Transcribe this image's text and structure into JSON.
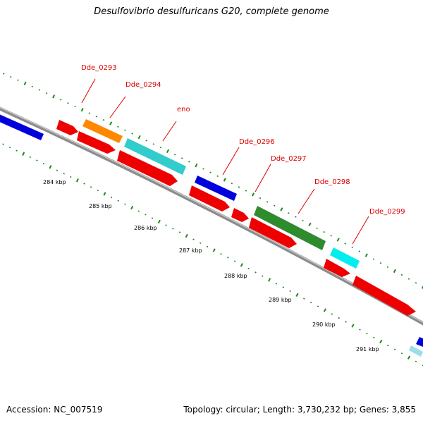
{
  "title": "Desulfovibrio desulfuricans G20, complete genome",
  "footer": {
    "accession": "Accession: NC_007519",
    "summary": "Topology: circular; Length: 3,730,232 bp; Genes: 3,855"
  },
  "colors": {
    "backbone": "#8c8c8c",
    "tick": "#1a8a1a",
    "label": "#dd0000",
    "red_gene": "#ee0000",
    "blue_gene": "#0000dd",
    "orange_gene": "#ff8800",
    "cyan_gene": "#33cccc",
    "bright_cyan_gene": "#00eeee",
    "green_gene": "#2e8b2e"
  },
  "gene_labels": [
    "Dde_0293",
    "Dde_0294",
    "eno",
    "Dde_0296",
    "Dde_0297",
    "Dde_0298",
    "Dde_0299"
  ],
  "kbp_labels": [
    "284 kbp",
    "285 kbp",
    "286 kbp",
    "287 kbp",
    "288 kbp",
    "289 kbp",
    "290 kbp",
    "291 kbp"
  ]
}
